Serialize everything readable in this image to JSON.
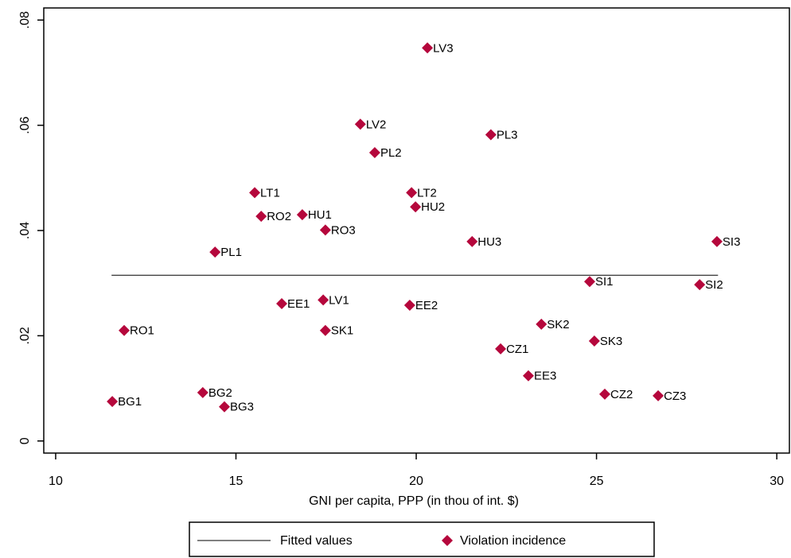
{
  "chart_data": {
    "type": "scatter",
    "xlabel": "GNI per capita, PPP (in thou of int. $)",
    "xlim": [
      9.67,
      30.35
    ],
    "xticks": [
      10,
      15,
      20,
      25,
      30
    ],
    "ylim": [
      -0.0023,
      0.0823
    ],
    "yticks": [
      0,
      {
        "value": 0.02,
        "label": ".02"
      },
      {
        "value": 0.04,
        "label": ".04"
      },
      {
        "value": 0.06,
        "label": ".06"
      },
      {
        "value": 0.08,
        "label": ".08"
      }
    ],
    "grid": false,
    "legend": "bottom",
    "series": [
      {
        "name": "Fitted values",
        "type": "line",
        "color": "#000000",
        "x": [
          11.55,
          28.37
        ],
        "values": [
          0.0315,
          0.0315
        ]
      },
      {
        "name": "Violation incidence",
        "type": "scatter",
        "color": "#b5073c",
        "point_labels": [
          "LV3",
          "LV2",
          "PL3",
          "PL2",
          "LT1",
          "LT2",
          "RO2",
          "HU1",
          "HU2",
          "RO3",
          "HU3",
          "SI3",
          "PL1",
          "SI1",
          "SI2",
          "EE1",
          "LV1",
          "EE2",
          "SK2",
          "RO1",
          "SK1",
          "SK3",
          "CZ1",
          "EE3",
          "BG2",
          "CZ2",
          "CZ3",
          "BG1",
          "BG3"
        ],
        "x": [
          20.31,
          18.45,
          22.07,
          18.85,
          15.52,
          19.87,
          15.7,
          16.84,
          19.98,
          17.48,
          21.55,
          28.34,
          14.42,
          24.81,
          27.86,
          16.27,
          17.42,
          19.82,
          23.47,
          11.9,
          17.48,
          24.94,
          22.34,
          23.11,
          14.08,
          25.23,
          26.71,
          11.57,
          14.68
        ],
        "values": [
          0.0747,
          0.0602,
          0.0582,
          0.0548,
          0.0472,
          0.0472,
          0.0427,
          0.043,
          0.0445,
          0.0401,
          0.0379,
          0.0379,
          0.0359,
          0.0303,
          0.0297,
          0.0261,
          0.0268,
          0.0258,
          0.0222,
          0.021,
          0.021,
          0.019,
          0.0175,
          0.0124,
          0.0092,
          0.0089,
          0.0086,
          0.0075,
          0.0065
        ]
      }
    ]
  }
}
